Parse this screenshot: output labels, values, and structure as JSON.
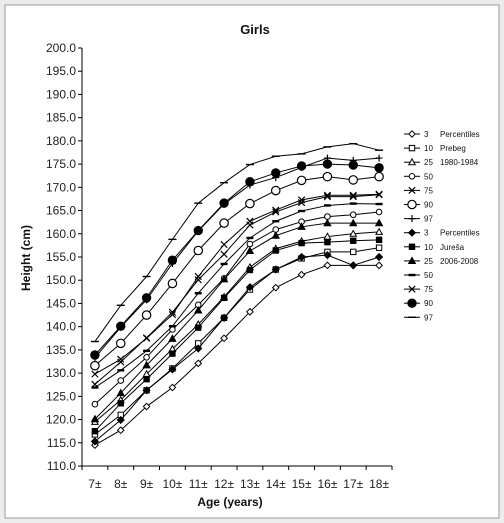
{
  "chart_data": {
    "type": "line",
    "title": "Girls",
    "xlabel": "Age (years)",
    "ylabel": "Height (cm)",
    "categories": [
      "7±",
      "8±",
      "9±",
      "10±",
      "11±",
      "12±",
      "13±",
      "14±",
      "15±",
      "16±",
      "17±",
      "18±"
    ],
    "ylim": [
      110,
      200
    ],
    "yticks": [
      "110.0",
      "115.0",
      "120.0",
      "125.0",
      "130.0",
      "135.0",
      "140.0",
      "145.0",
      "150.0",
      "155.0",
      "160.0",
      "165.0",
      "170.0",
      "175.0",
      "180.0",
      "185.0",
      "190.0",
      "195.0",
      "200.0"
    ],
    "grid": false,
    "legend_position": "right",
    "legend_group_labels": [
      {
        "row": 0,
        "text": "Percentiles"
      },
      {
        "row": 1,
        "text": "Prebeg"
      },
      {
        "row": 2,
        "text": "1980-1984"
      },
      {
        "row": 7,
        "text": "Percentiles"
      },
      {
        "row": 8,
        "text": "Jureša"
      },
      {
        "row": 9,
        "text": "2006-2008"
      }
    ],
    "series": [
      {
        "name": "3",
        "marker": "diamond-open",
        "values": [
          114.5,
          117.7,
          122.8,
          126.9,
          132.1,
          137.5,
          143.2,
          148.4,
          151.2,
          153.2,
          153.2,
          153.2
        ]
      },
      {
        "name": "10",
        "marker": "square-open",
        "values": [
          116.8,
          121.0,
          126.3,
          131.0,
          136.4,
          141.9,
          148.0,
          152.3,
          154.7,
          156.1,
          156.1,
          157.0
        ]
      },
      {
        "name": "25",
        "marker": "triangle-open",
        "values": [
          119.5,
          124.2,
          129.8,
          135.2,
          140.5,
          146.4,
          152.8,
          156.8,
          158.4,
          159.4,
          160.0,
          160.4
        ]
      },
      {
        "name": "50",
        "marker": "circle-open",
        "values": [
          123.3,
          128.4,
          133.4,
          139.4,
          144.7,
          150.4,
          157.8,
          160.9,
          162.6,
          163.7,
          164.1,
          164.7
        ]
      },
      {
        "name": "75",
        "marker": "x",
        "values": [
          127.6,
          132.4,
          137.6,
          143.1,
          150.1,
          155.6,
          161.9,
          164.7,
          166.7,
          168.0,
          168.0,
          168.4
        ]
      },
      {
        "name": "90",
        "marker": "circle-open-large",
        "values": [
          131.6,
          136.4,
          142.5,
          149.3,
          156.4,
          162.3,
          166.5,
          169.3,
          171.5,
          172.3,
          171.6,
          172.3
        ]
      },
      {
        "name": "97",
        "marker": "plus",
        "values": [
          133.3,
          139.9,
          145.8,
          153.6,
          160.6,
          166.4,
          170.5,
          172.1,
          174.3,
          176.3,
          175.8,
          176.3
        ]
      },
      {
        "name": "3",
        "marker": "diamond-filled",
        "values": [
          115.3,
          119.9,
          126.3,
          130.8,
          135.3,
          141.9,
          148.5,
          152.3,
          155.0,
          155.4,
          153.2,
          155.0
        ]
      },
      {
        "name": "10",
        "marker": "square-filled",
        "values": [
          117.5,
          123.5,
          128.7,
          134.2,
          139.8,
          146.2,
          152.2,
          156.4,
          158.0,
          158.2,
          158.5,
          158.7
        ]
      },
      {
        "name": "25",
        "marker": "triangle-filled",
        "values": [
          120.1,
          125.7,
          131.7,
          137.4,
          143.5,
          150.2,
          156.3,
          159.6,
          161.5,
          162.3,
          162.3,
          162.3
        ]
      },
      {
        "name": "50",
        "marker": "dash",
        "values": [
          126.9,
          130.6,
          134.8,
          140.1,
          147.2,
          153.5,
          159.1,
          162.7,
          164.9,
          166.1,
          166.5,
          166.4
        ]
      },
      {
        "name": "75",
        "marker": "x",
        "values": [
          129.8,
          133.0,
          137.5,
          142.6,
          150.8,
          157.7,
          162.7,
          165.1,
          167.3,
          168.3,
          168.3,
          168.5
        ]
      },
      {
        "name": "90",
        "marker": "circle-filled",
        "values": [
          133.9,
          140.1,
          146.2,
          154.3,
          160.7,
          166.6,
          171.2,
          173.1,
          174.6,
          175.0,
          174.8,
          174.2
        ]
      },
      {
        "name": "97",
        "marker": "dash-long",
        "values": [
          136.8,
          144.6,
          150.8,
          158.8,
          166.6,
          171.0,
          174.9,
          176.7,
          177.2,
          178.7,
          179.4,
          178.0
        ]
      }
    ]
  }
}
